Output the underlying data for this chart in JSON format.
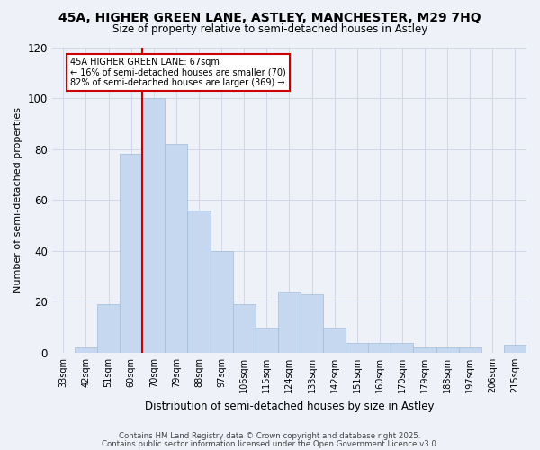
{
  "title": "45A, HIGHER GREEN LANE, ASTLEY, MANCHESTER, M29 7HQ",
  "subtitle": "Size of property relative to semi-detached houses in Astley",
  "xlabel": "Distribution of semi-detached houses by size in Astley",
  "ylabel": "Number of semi-detached properties",
  "categories": [
    "33sqm",
    "42sqm",
    "51sqm",
    "60sqm",
    "70sqm",
    "79sqm",
    "88sqm",
    "97sqm",
    "106sqm",
    "115sqm",
    "124sqm",
    "133sqm",
    "142sqm",
    "151sqm",
    "160sqm",
    "170sqm",
    "179sqm",
    "188sqm",
    "197sqm",
    "206sqm",
    "215sqm"
  ],
  "values": [
    0,
    2,
    19,
    78,
    100,
    82,
    56,
    40,
    19,
    10,
    24,
    23,
    10,
    4,
    4,
    4,
    2,
    2,
    2,
    0,
    3
  ],
  "bar_color": "#c5d8f0",
  "bar_edge_color": "#a0bcd8",
  "annotation_text": "45A HIGHER GREEN LANE: 67sqm\n← 16% of semi-detached houses are smaller (70)\n82% of semi-detached houses are larger (369) →",
  "annotation_box_color": "#ffffff",
  "annotation_box_edge": "#cc0000",
  "vline_color": "#cc0000",
  "vline_x_index": 4,
  "ylim": [
    0,
    120
  ],
  "yticks": [
    0,
    20,
    40,
    60,
    80,
    100,
    120
  ],
  "grid_color": "#d0d8e8",
  "bg_color": "#eef2f8",
  "footer1": "Contains HM Land Registry data © Crown copyright and database right 2025.",
  "footer2": "Contains public sector information licensed under the Open Government Licence v3.0."
}
